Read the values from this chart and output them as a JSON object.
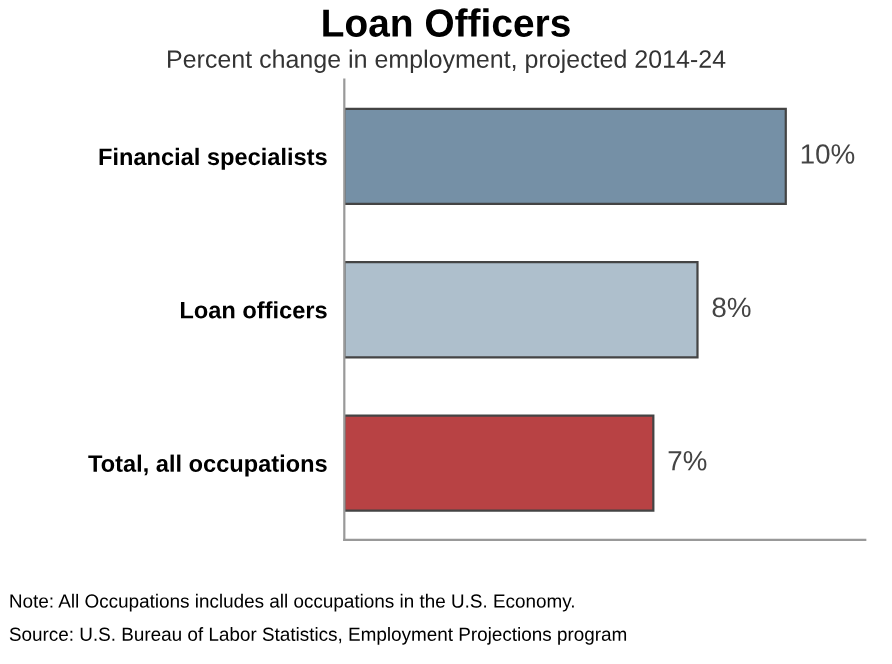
{
  "chart_data": {
    "type": "bar",
    "orientation": "horizontal",
    "title": "Loan Officers",
    "subtitle": "Percent change in employment, projected 2014-24",
    "categories": [
      "Financial specialists",
      "Loan officers",
      "Total, all occupations"
    ],
    "values": [
      10,
      8,
      7
    ],
    "colors": [
      "#7590a6",
      "#aebfcc",
      "#b84244"
    ],
    "value_labels": [
      "10%",
      "8%",
      "7%"
    ],
    "xlim": [
      0,
      11.8
    ],
    "tick_labels": "y",
    "grid": false,
    "annotations": [
      "Note: All Occupations includes all occupations in the U.S. Economy.",
      "Source: U.S. Bureau of Labor Statistics, Employment Projections program"
    ]
  }
}
